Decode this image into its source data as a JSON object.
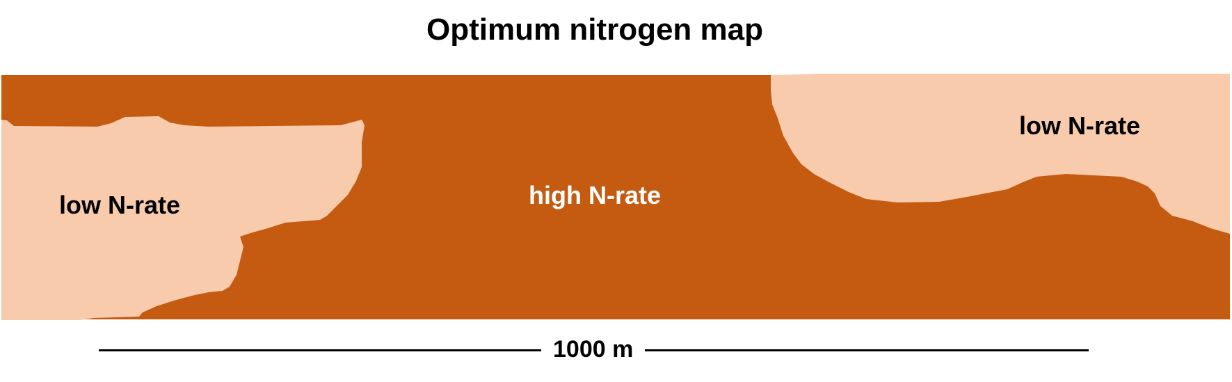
{
  "title": "Optimum nitrogen map",
  "colors": {
    "high_n_rate": "#c55a11",
    "low_n_rate": "#f8cbad"
  },
  "zones": {
    "left": "low N-rate",
    "center": "high N-rate",
    "right": "low N-rate"
  },
  "scale_bar": {
    "label": "1000 m"
  }
}
